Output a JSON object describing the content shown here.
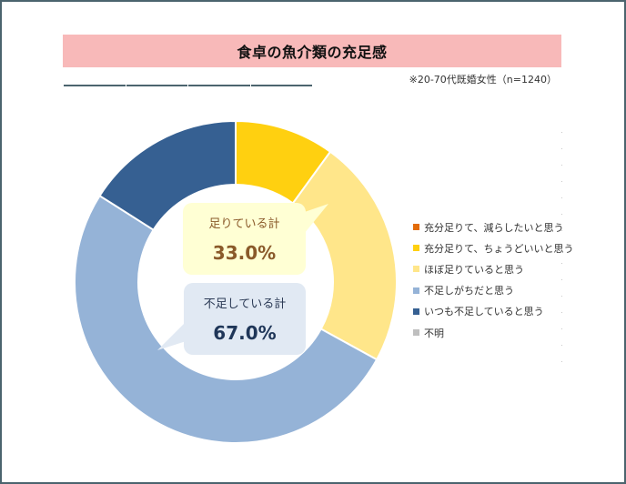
{
  "header": {
    "title": "食卓の魚介類の充足感",
    "note": "※20-70代既婚女性（n=1240）"
  },
  "callouts": {
    "enough": {
      "label": "足りている計",
      "value": "33.0%"
    },
    "short": {
      "label": "不足している計",
      "value": "67.0%"
    }
  },
  "legend": [
    {
      "label": "充分足りて、減らしたいと思う",
      "color": "#e36c0a"
    },
    {
      "label": "充分足りて、ちょうどいいと思う",
      "color": "#ffd010"
    },
    {
      "label": "ほぼ足りていると思う",
      "color": "#ffe68a"
    },
    {
      "label": "不足しがちだと思う",
      "color": "#95b3d7"
    },
    {
      "label": "いつも不足していると思う",
      "color": "#366092"
    },
    {
      "label": "不明",
      "color": "#bfbfbf"
    }
  ],
  "chart_data": {
    "type": "pie",
    "subtype": "donut",
    "title": "食卓の魚介類の充足感",
    "subtitle": "※20-70代既婚女性（n=1240）",
    "categories": [
      "充分足りて、減らしたいと思う",
      "充分足りて、ちょうどいいと思う",
      "ほぼ足りていると思う",
      "不足しがちだと思う",
      "いつも不足していると思う",
      "不明"
    ],
    "values": [
      0,
      10,
      23,
      51,
      16,
      0
    ],
    "colors": [
      "#e36c0a",
      "#ffd010",
      "#ffe68a",
      "#95b3d7",
      "#366092",
      "#bfbfbf"
    ],
    "annotations": [
      {
        "text": "足りている計 33.0%"
      },
      {
        "text": "不足している計 67.0%"
      }
    ],
    "legend_position": "right",
    "start_angle": 0,
    "direction": "clockwise"
  }
}
